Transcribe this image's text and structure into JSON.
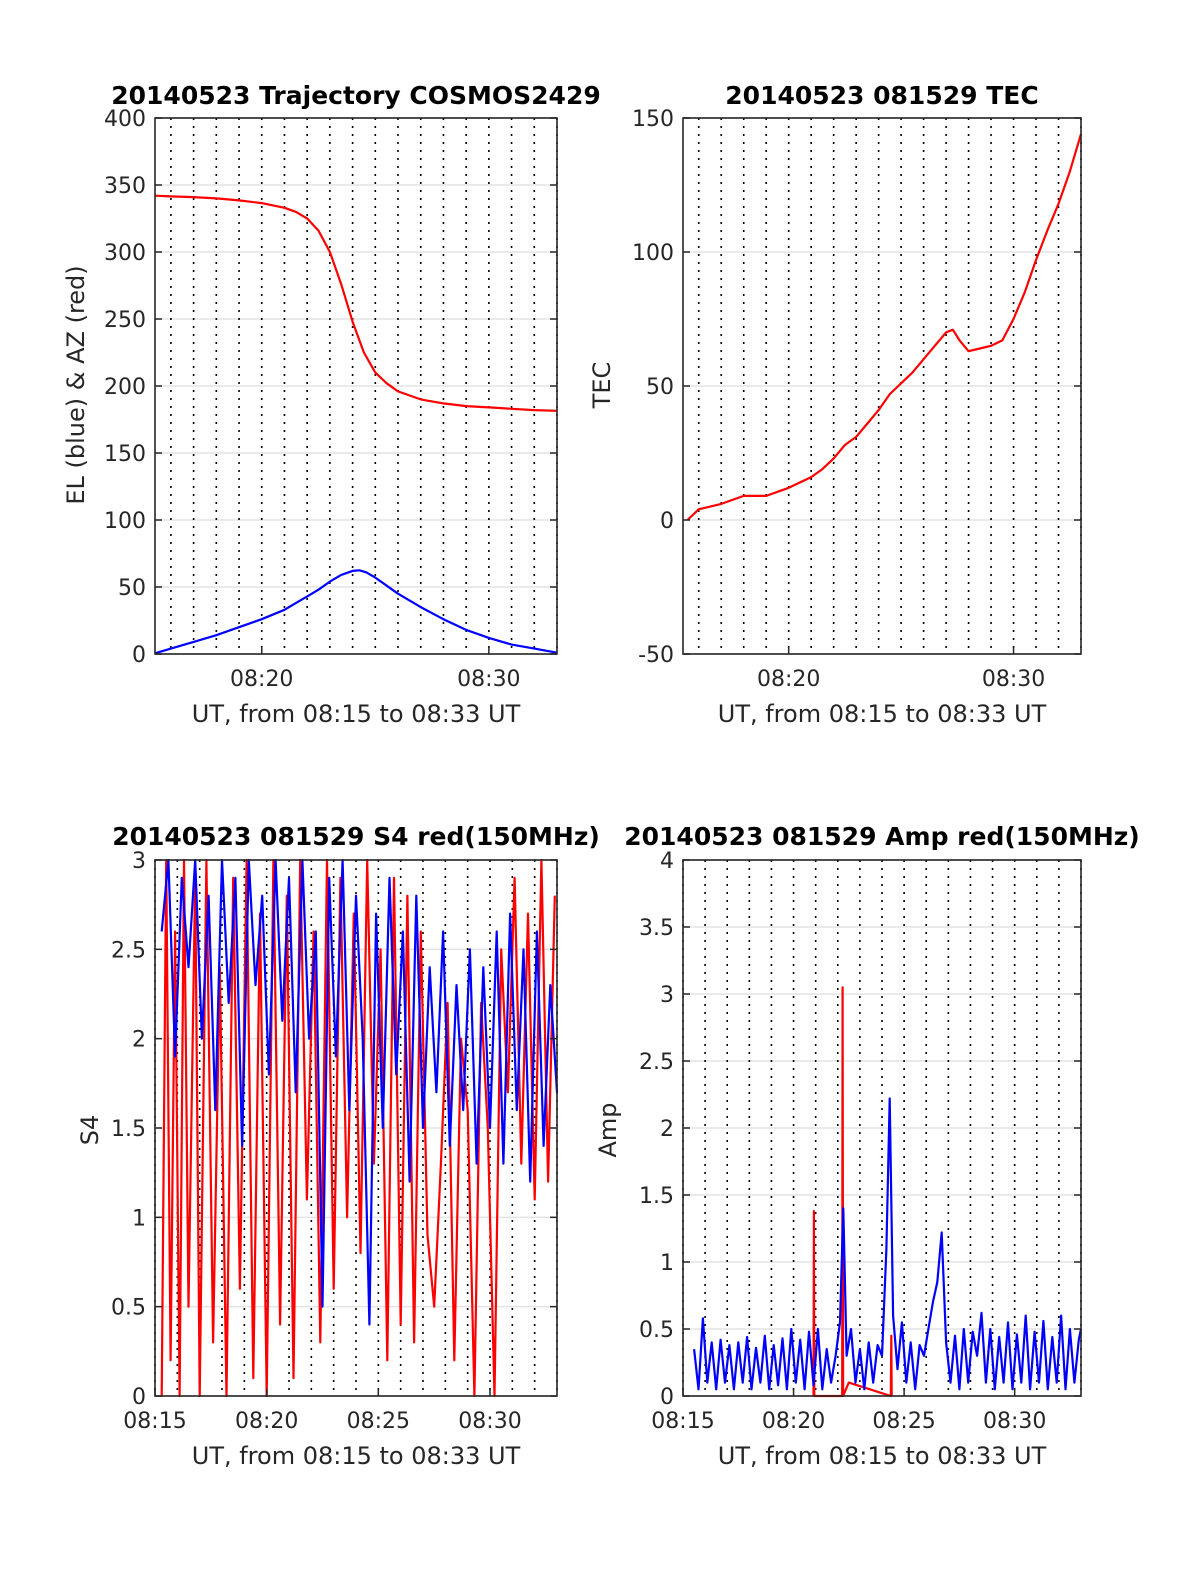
{
  "chart_data": [
    {
      "type": "line",
      "title": "20140523 Trajectory COSMOS2429",
      "xlabel": "UT, from 08:15 to 08:33 UT",
      "ylabel": "EL (blue) & AZ (red)",
      "x_unit": "minutes after 08:00 UT",
      "xlim": [
        15.3,
        33.0
      ],
      "ylim": [
        0,
        400
      ],
      "xticks": [
        {
          "value": 20,
          "label": "08:20"
        },
        {
          "value": 30,
          "label": "08:30"
        }
      ],
      "yticks": [
        0,
        50,
        100,
        150,
        200,
        250,
        300,
        350,
        400
      ],
      "grid": true,
      "series": [
        {
          "color": "#ff0000",
          "x": [
            15.3,
            16,
            17,
            18,
            19,
            20,
            21,
            21.5,
            22,
            22.5,
            23,
            23.5,
            24,
            24.5,
            25,
            25.5,
            26,
            27,
            28,
            29,
            30,
            31,
            32,
            33
          ],
          "y": [
            342,
            341.5,
            341,
            340,
            338.5,
            336.5,
            333,
            330,
            325,
            316,
            300,
            276,
            248,
            225,
            210,
            202,
            196,
            190,
            187,
            185,
            184,
            183,
            182,
            181.5
          ]
        },
        {
          "color": "#0000ff",
          "x": [
            15.3,
            16,
            17,
            18,
            19,
            20,
            21,
            21.5,
            22,
            22.5,
            23,
            23.5,
            24,
            24.3,
            24.6,
            25,
            25.5,
            26,
            27,
            28,
            29,
            30,
            31,
            32,
            33
          ],
          "y": [
            0.5,
            4,
            9,
            14,
            20,
            26,
            33,
            38,
            43,
            48,
            54,
            59,
            62,
            62.5,
            61,
            57,
            51,
            45,
            35,
            26,
            18,
            12,
            7,
            4,
            1
          ]
        }
      ]
    },
    {
      "type": "line",
      "title": "20140523 081529 TEC",
      "xlabel": "UT, from 08:15 to 08:33 UT",
      "ylabel": "TEC",
      "x_unit": "minutes after 08:00 UT",
      "xlim": [
        15.3,
        33.0
      ],
      "ylim": [
        -50,
        150
      ],
      "xticks": [
        {
          "value": 20,
          "label": "08:20"
        },
        {
          "value": 30,
          "label": "08:30"
        }
      ],
      "yticks": [
        -50,
        0,
        50,
        100,
        150
      ],
      "grid": true,
      "series": [
        {
          "color": "#ff0000",
          "x": [
            15.5,
            16,
            17,
            18,
            19,
            20,
            21,
            21.5,
            22,
            22.5,
            23,
            23.5,
            24,
            24.5,
            25,
            25.5,
            26,
            26.5,
            27,
            27.3,
            27.6,
            28,
            28.5,
            29,
            29.5,
            30,
            30.5,
            31,
            31.5,
            32,
            32.5,
            33
          ],
          "y": [
            0,
            4,
            6,
            9,
            9,
            12,
            16,
            19,
            23,
            28,
            31,
            36,
            41,
            47,
            51,
            55,
            60,
            65,
            70,
            71,
            67,
            63,
            64,
            65,
            67,
            75,
            85,
            97,
            108,
            118,
            130,
            144
          ]
        }
      ]
    },
    {
      "type": "line",
      "title": "20140523 081529 S4 red(150MHz)",
      "xlabel": "UT, from 08:15 to 08:33 UT",
      "ylabel": "S4",
      "x_unit": "minutes after 08:00 UT",
      "xlim": [
        15.0,
        33.0
      ],
      "ylim": [
        0,
        3
      ],
      "xticks": [
        {
          "value": 15,
          "label": "08:15"
        },
        {
          "value": 20,
          "label": "08:20"
        },
        {
          "value": 25,
          "label": "08:25"
        },
        {
          "value": 30,
          "label": "08:30"
        }
      ],
      "yticks": [
        0,
        0.5,
        1,
        1.5,
        2,
        2.5,
        3
      ],
      "grid": true,
      "series": [
        {
          "color": "#ff0000",
          "x": [
            15.3,
            15.5,
            15.7,
            15.9,
            16.1,
            16.3,
            16.5,
            16.8,
            17.0,
            17.3,
            17.6,
            17.9,
            18.2,
            18.5,
            18.8,
            19.1,
            19.4,
            19.7,
            20.0,
            20.3,
            20.6,
            20.9,
            21.2,
            21.5,
            21.8,
            22.1,
            22.4,
            22.7,
            23.0,
            23.3,
            23.6,
            23.9,
            24.2,
            24.5,
            24.8,
            25.1,
            25.4,
            25.7,
            26.0,
            26.3,
            26.6,
            26.9,
            27.2,
            27.5,
            27.8,
            28.1,
            28.4,
            28.7,
            29.0,
            29.3,
            29.6,
            29.9,
            30.2,
            30.5,
            30.8,
            31.1,
            31.4,
            31.7,
            32.0,
            32.3,
            32.6,
            32.9
          ],
          "y": [
            0,
            3,
            0.2,
            2.6,
            0,
            3,
            0.5,
            2.9,
            0,
            3,
            0.3,
            2.4,
            0,
            2.9,
            0.6,
            3,
            0.1,
            2.7,
            0,
            3,
            0.4,
            2.8,
            0.1,
            3,
            1.1,
            2.6,
            0.3,
            3,
            0.6,
            2.9,
            1.0,
            2.7,
            0.8,
            3,
            1.3,
            2.5,
            0.2,
            2.9,
            0.4,
            2.8,
            0.3,
            2.6,
            0.9,
            0.5,
            1.3,
            2.2,
            0.2,
            2.0,
            1.6,
            0,
            2.2,
            1.5,
            0,
            2.5,
            1.7,
            2.9,
            1.3,
            2.7,
            1.1,
            3,
            1.2,
            2.8
          ]
        },
        {
          "color": "#0000ff",
          "x": [
            15.3,
            15.6,
            15.9,
            16.2,
            16.5,
            16.8,
            17.1,
            17.4,
            17.7,
            18.0,
            18.3,
            18.6,
            18.9,
            19.2,
            19.5,
            19.8,
            20.1,
            20.4,
            20.7,
            21.0,
            21.3,
            21.6,
            21.9,
            22.2,
            22.5,
            22.8,
            23.1,
            23.4,
            23.7,
            24.0,
            24.3,
            24.6,
            24.9,
            25.2,
            25.5,
            25.8,
            26.1,
            26.4,
            26.7,
            27.0,
            27.3,
            27.6,
            27.9,
            28.2,
            28.5,
            28.8,
            29.1,
            29.4,
            29.7,
            30.0,
            30.3,
            30.6,
            30.9,
            31.2,
            31.5,
            31.8,
            32.1,
            32.4,
            32.7,
            33.0
          ],
          "y": [
            2.6,
            3,
            1.9,
            2.9,
            2.4,
            3,
            2.0,
            2.8,
            1.6,
            3,
            2.2,
            2.9,
            1.4,
            3,
            2.3,
            2.8,
            1.8,
            3,
            2.1,
            2.9,
            1.7,
            3,
            2.0,
            2.6,
            0.5,
            2.9,
            1.9,
            3,
            1.6,
            2.8,
            2.0,
            0.4,
            2.7,
            1.5,
            2.9,
            1.8,
            2.6,
            1.2,
            2.8,
            1.5,
            2.4,
            1.7,
            2.6,
            1.4,
            2.3,
            1.6,
            2.5,
            1.3,
            2.4,
            1.5,
            2.6,
            1.3,
            2.7,
            1.6,
            2.5,
            1.2,
            2.6,
            1.4,
            2.3,
            1.7
          ]
        }
      ]
    },
    {
      "type": "line",
      "title": "20140523 081529 Amp red(150MHz)",
      "xlabel": "UT, from 08:15 to 08:33 UT",
      "ylabel": "Amp",
      "x_unit": "minutes after 08:00 UT",
      "xlim": [
        15.0,
        33.0
      ],
      "ylim": [
        0,
        4
      ],
      "xticks": [
        {
          "value": 15,
          "label": "08:15"
        },
        {
          "value": 20,
          "label": "08:20"
        },
        {
          "value": 25,
          "label": "08:25"
        },
        {
          "value": 30,
          "label": "08:30"
        }
      ],
      "yticks": [
        0,
        0.5,
        1,
        1.5,
        2,
        2.5,
        3,
        3.5,
        4
      ],
      "grid": true,
      "series": [
        {
          "color": "#ff0000",
          "x": [
            20.9,
            20.92,
            20.94,
            22.2,
            22.22,
            22.24,
            22.5,
            24.4,
            24.42,
            24.44
          ],
          "y": [
            0,
            1.38,
            0,
            0,
            3.05,
            0,
            0.1,
            0,
            0.45,
            0
          ]
        },
        {
          "color": "#0000ff",
          "x": [
            15.5,
            15.7,
            15.9,
            16.1,
            16.3,
            16.5,
            16.7,
            16.9,
            17.1,
            17.3,
            17.5,
            17.7,
            17.9,
            18.1,
            18.3,
            18.5,
            18.7,
            18.9,
            19.1,
            19.3,
            19.5,
            19.7,
            19.9,
            20.1,
            20.3,
            20.5,
            20.7,
            20.9,
            21.1,
            21.3,
            21.5,
            21.7,
            21.9,
            22.1,
            22.25,
            22.4,
            22.6,
            22.8,
            23.0,
            23.2,
            23.4,
            23.6,
            23.8,
            24.0,
            24.2,
            24.35,
            24.5,
            24.7,
            24.9,
            25.1,
            25.3,
            25.5,
            25.7,
            25.9,
            26.1,
            26.3,
            26.5,
            26.7,
            26.9,
            27.1,
            27.3,
            27.5,
            27.7,
            27.9,
            28.1,
            28.3,
            28.5,
            28.7,
            28.9,
            29.1,
            29.3,
            29.5,
            29.7,
            29.9,
            30.1,
            30.3,
            30.5,
            30.7,
            30.9,
            31.1,
            31.3,
            31.5,
            31.7,
            31.9,
            32.1,
            32.3,
            32.5,
            32.7,
            32.9,
            33.0
          ],
          "y": [
            0.35,
            0.05,
            0.58,
            0.1,
            0.4,
            0.05,
            0.42,
            0.1,
            0.38,
            0.05,
            0.4,
            0.1,
            0.44,
            0.05,
            0.36,
            0.1,
            0.45,
            0.05,
            0.38,
            0.08,
            0.43,
            0.05,
            0.5,
            0.1,
            0.42,
            0.05,
            0.48,
            0.08,
            0.5,
            0.05,
            0.35,
            0.1,
            0.3,
            0.55,
            1.4,
            0.3,
            0.5,
            0.1,
            0.35,
            0.05,
            0.4,
            0.1,
            0.38,
            0.3,
            1.1,
            2.22,
            0.6,
            0.2,
            0.55,
            0.1,
            0.4,
            0.05,
            0.38,
            0.3,
            0.5,
            0.7,
            0.85,
            1.22,
            0.4,
            0.1,
            0.45,
            0.05,
            0.5,
            0.1,
            0.48,
            0.3,
            0.62,
            0.1,
            0.5,
            0.05,
            0.44,
            0.1,
            0.55,
            0.05,
            0.46,
            0.1,
            0.6,
            0.05,
            0.48,
            0.1,
            0.56,
            0.05,
            0.44,
            0.1,
            0.6,
            0.05,
            0.5,
            0.1,
            0.42,
            0.5
          ]
        }
      ]
    }
  ]
}
